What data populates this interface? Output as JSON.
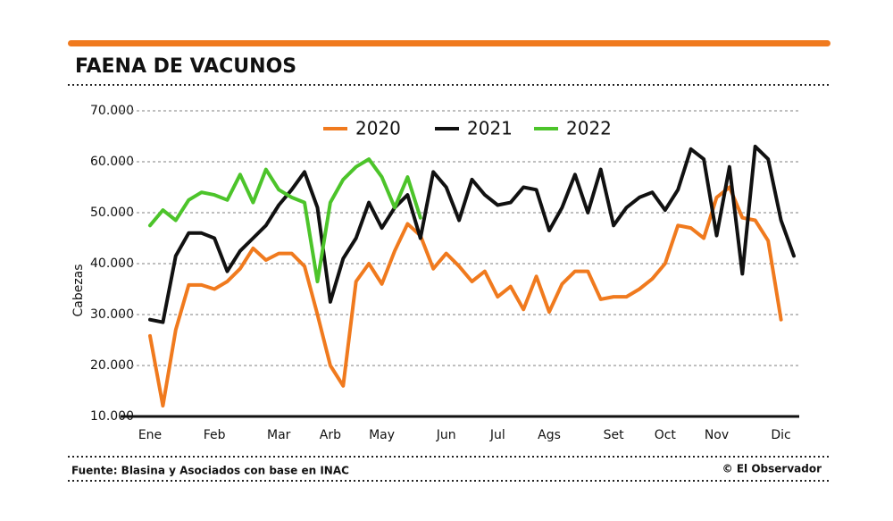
{
  "chart_data": {
    "type": "line",
    "title": "FAENA DE VACUNOS",
    "y_label": "Cabezas",
    "source": "Fuente: Blasina y Asociados con base en INAC",
    "credit": "© El Observador",
    "categories": [
      "Ene",
      null,
      null,
      null,
      null,
      "Feb",
      null,
      null,
      null,
      null,
      "Mar",
      null,
      null,
      null,
      "Arb",
      null,
      null,
      null,
      "May",
      null,
      null,
      null,
      null,
      "Jun",
      null,
      null,
      null,
      "Jul",
      null,
      null,
      null,
      "Ags",
      null,
      null,
      null,
      null,
      "Set",
      null,
      null,
      null,
      "Oct",
      null,
      null,
      null,
      "Nov",
      null,
      null,
      null,
      null,
      "Dic",
      null
    ],
    "series": [
      {
        "name": "2020",
        "color": "#f07a1e",
        "values": [
          25800,
          12100,
          27000,
          35800,
          35800,
          35000,
          36500,
          39000,
          43000,
          40700,
          42000,
          42000,
          39500,
          30000,
          20000,
          16000,
          36500,
          40000,
          36000,
          42500,
          47800,
          45500,
          39000,
          42000,
          39500,
          36500,
          38500,
          33500,
          35500,
          31000,
          37500,
          30500,
          36000,
          38500,
          38500,
          33000,
          33500,
          33500,
          35000,
          37000,
          40000,
          47500,
          47000,
          45000,
          53000,
          55000,
          49000,
          48500,
          44500,
          29000,
          null
        ]
      },
      {
        "name": "2021",
        "color": "#111111",
        "values": [
          29000,
          28500,
          41500,
          46000,
          46000,
          45000,
          38500,
          42500,
          45000,
          47500,
          51500,
          54500,
          58000,
          51000,
          32500,
          41000,
          45000,
          52000,
          47000,
          51000,
          53500,
          45000,
          58000,
          55000,
          48500,
          56500,
          53500,
          51500,
          52000,
          55000,
          54500,
          46500,
          51000,
          57500,
          50000,
          58500,
          47500,
          51000,
          53000,
          54000,
          50500,
          54500,
          62500,
          60500,
          45500,
          59000,
          38000,
          63000,
          60500,
          48500,
          41500
        ]
      },
      {
        "name": "2022",
        "color": "#4cc42a",
        "values": [
          47500,
          50500,
          48500,
          52500,
          54000,
          53500,
          52500,
          57500,
          52000,
          58500,
          54500,
          53000,
          52000,
          36500,
          52000,
          56500,
          59000,
          60500,
          57000,
          51000,
          57000,
          49000,
          null,
          null,
          null,
          null,
          null,
          null,
          null,
          null,
          null,
          null,
          null,
          null,
          null,
          null,
          null,
          null,
          null,
          null,
          null,
          null,
          null,
          null,
          null,
          null,
          null,
          null,
          null,
          null,
          null
        ]
      }
    ],
    "ylim": [
      10000,
      70000
    ],
    "yticks": [
      {
        "value": 10000,
        "label": "10.000"
      },
      {
        "value": 20000,
        "label": "20.000"
      },
      {
        "value": 30000,
        "label": "30.000"
      },
      {
        "value": 40000,
        "label": "40.000"
      },
      {
        "value": 50000,
        "label": "50.000"
      },
      {
        "value": 60000,
        "label": "60.000"
      },
      {
        "value": 70000,
        "label": "70.000"
      }
    ],
    "grid": true,
    "legend": "top"
  }
}
